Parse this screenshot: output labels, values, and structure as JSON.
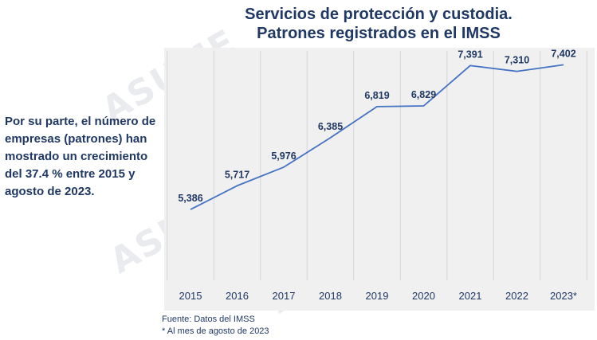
{
  "watermark_text": "ASUME",
  "title_line1": "Servicios de protección y custodia.",
  "title_line2": "Patrones registrados en el IMSS",
  "side_text": "Por su parte, el número de empresas (patrones) han mostrado un crecimiento del 37.4 % entre 2015 y agosto de 2023.",
  "footnote_source": "Fuente: Datos del IMSS",
  "footnote_note": "* Al mes de agosto de 2023",
  "colors": {
    "line": "#4472c4",
    "text": "#1f3864",
    "plot_bg": "#f0f0f0",
    "gridlines": "#d4d4d4"
  },
  "chart_data": {
    "type": "line",
    "title": "Servicios de protección y custodia. Patrones registrados en el IMSS",
    "categories": [
      "2015",
      "2016",
      "2017",
      "2018",
      "2019",
      "2020",
      "2021",
      "2022",
      "2023*"
    ],
    "values": [
      5386,
      5717,
      5976,
      6385,
      6819,
      6829,
      7391,
      7310,
      7402
    ],
    "value_labels": [
      "5,386",
      "5,717",
      "5,976",
      "6,385",
      "6,819",
      "6,829",
      "7,391",
      "7,310",
      "7,402"
    ],
    "ylim": [
      4400,
      7550
    ],
    "grid": "vertical"
  }
}
